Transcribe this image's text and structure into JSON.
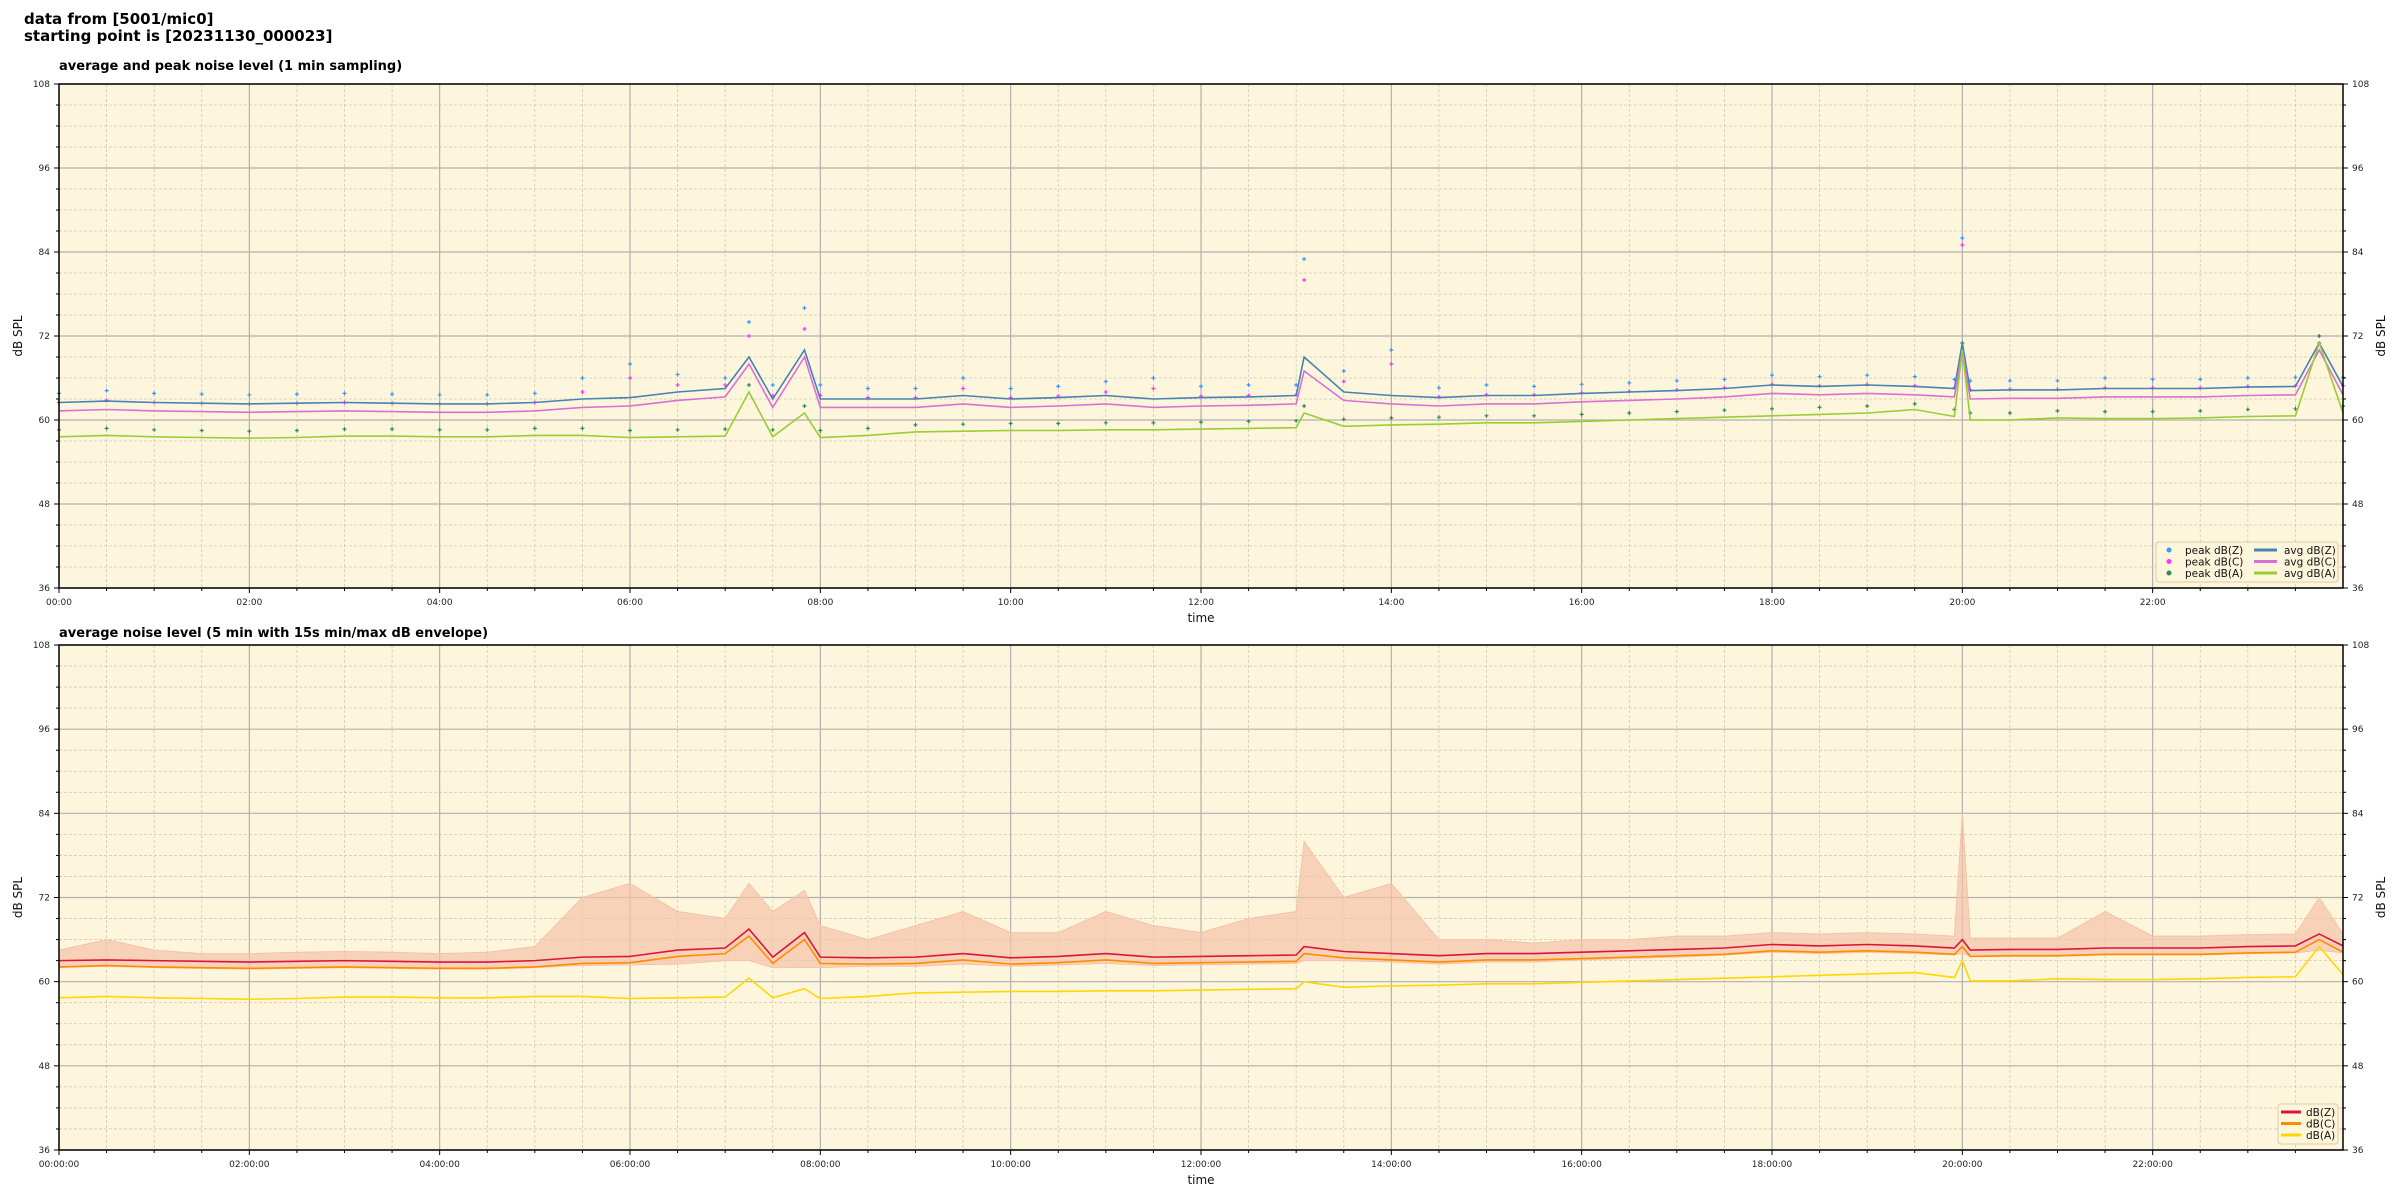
{
  "header": {
    "line1": "data from [5001/mic0]",
    "line2": "starting point is [20231130_000023]"
  },
  "colors": {
    "background": "#fef6dc",
    "grid_major": "#b0b0b0",
    "grid_minor": "#cfcabb"
  },
  "chart_data": [
    {
      "type": "line",
      "title": "average and peak noise level (1 min sampling)",
      "xlabel": "time",
      "ylabel": "dB SPL",
      "ylim": [
        36,
        108
      ],
      "xlim": [
        "00:00",
        "24:00"
      ],
      "yticks": [
        "108",
        "96",
        "84",
        "72",
        "60",
        "48",
        "36"
      ],
      "xticks": [
        "00:00",
        "02:00",
        "04:00",
        "06:00",
        "08:00",
        "10:00",
        "12:00",
        "14:00",
        "16:00",
        "18:00",
        "20:00",
        "22:00"
      ],
      "grid": true,
      "legend": "bottom-right",
      "x": [
        "00:00",
        "00:30",
        "01:00",
        "01:30",
        "02:00",
        "02:30",
        "03:00",
        "03:30",
        "04:00",
        "04:30",
        "05:00",
        "05:30",
        "06:00",
        "06:30",
        "07:00",
        "07:15",
        "07:30",
        "07:50",
        "08:00",
        "08:30",
        "09:00",
        "09:30",
        "10:00",
        "10:30",
        "11:00",
        "11:30",
        "12:00",
        "12:30",
        "13:00",
        "13:05",
        "13:30",
        "14:00",
        "14:30",
        "15:00",
        "15:30",
        "16:00",
        "16:30",
        "17:00",
        "17:30",
        "18:00",
        "18:30",
        "19:00",
        "19:30",
        "19:55",
        "20:00",
        "20:05",
        "20:30",
        "21:00",
        "21:30",
        "22:00",
        "22:30",
        "23:00",
        "23:30",
        "23:45",
        "24:00"
      ],
      "series": [
        {
          "name": "peak dB(Z)",
          "kind": "points",
          "color": "#3399ff",
          "values": [
            63.8,
            64.2,
            63.8,
            63.7,
            63.6,
            63.7,
            63.8,
            63.7,
            63.6,
            63.6,
            63.8,
            66.0,
            68.0,
            66.5,
            66.0,
            74.0,
            65.0,
            76.0,
            65.0,
            64.5,
            64.5,
            66.0,
            64.5,
            64.8,
            65.5,
            66.0,
            64.8,
            65.0,
            65.0,
            83.0,
            67.0,
            70.0,
            64.6,
            65.0,
            64.8,
            65.1,
            65.3,
            65.6,
            65.8,
            66.4,
            66.2,
            66.4,
            66.2,
            65.8,
            86.0,
            65.6,
            65.6,
            65.6,
            66.0,
            65.8,
            65.8,
            66.0,
            66.1,
            72.0,
            66.1
          ]
        },
        {
          "name": "peak dB(C)",
          "kind": "points",
          "color": "#ff33ff",
          "values": [
            62.5,
            62.8,
            62.5,
            62.4,
            62.3,
            62.4,
            62.5,
            62.4,
            62.3,
            62.3,
            62.5,
            64.0,
            66.0,
            65.0,
            65.0,
            72.0,
            63.5,
            73.0,
            63.5,
            63.2,
            63.2,
            64.5,
            63.2,
            63.4,
            64.0,
            64.5,
            63.4,
            63.5,
            63.6,
            80.0,
            65.5,
            68.0,
            63.3,
            63.6,
            63.6,
            63.9,
            64.1,
            64.3,
            64.6,
            65.1,
            64.9,
            65.1,
            64.9,
            64.6,
            85.0,
            64.3,
            64.4,
            64.4,
            64.6,
            64.6,
            64.6,
            64.8,
            64.9,
            71.0,
            64.9
          ]
        },
        {
          "name": "peak dB(A)",
          "kind": "points",
          "color": "#2e8b57",
          "values": [
            58.6,
            58.8,
            58.6,
            58.5,
            58.4,
            58.5,
            58.7,
            58.7,
            58.6,
            58.6,
            58.8,
            58.8,
            58.5,
            58.6,
            58.7,
            65.0,
            58.6,
            62.0,
            58.5,
            58.8,
            59.3,
            59.4,
            59.5,
            59.5,
            59.6,
            59.6,
            59.7,
            59.8,
            59.9,
            62.0,
            60.1,
            60.3,
            60.4,
            60.6,
            60.6,
            60.8,
            61.0,
            61.2,
            61.4,
            61.6,
            61.8,
            62.0,
            62.3,
            61.5,
            71.0,
            61.0,
            61.0,
            61.3,
            61.2,
            61.2,
            61.3,
            61.5,
            61.6,
            72.0,
            62.0
          ]
        },
        {
          "name": "avg dB(Z)",
          "kind": "line",
          "color": "#4682b4",
          "values": [
            62.5,
            62.7,
            62.5,
            62.4,
            62.3,
            62.4,
            62.5,
            62.4,
            62.3,
            62.3,
            62.5,
            63.0,
            63.2,
            64.0,
            64.5,
            69.0,
            63.0,
            70.0,
            63.0,
            63.0,
            63.0,
            63.5,
            63.0,
            63.2,
            63.5,
            63.0,
            63.2,
            63.3,
            63.5,
            69.0,
            64.0,
            63.5,
            63.2,
            63.5,
            63.5,
            63.8,
            64.0,
            64.2,
            64.5,
            65.0,
            64.8,
            65.0,
            64.8,
            64.5,
            71.0,
            64.2,
            64.3,
            64.3,
            64.5,
            64.5,
            64.5,
            64.7,
            64.8,
            71.0,
            64.8
          ]
        },
        {
          "name": "avg dB(C)",
          "kind": "line",
          "color": "#da70d6",
          "values": [
            61.3,
            61.5,
            61.3,
            61.2,
            61.1,
            61.2,
            61.3,
            61.2,
            61.1,
            61.1,
            61.3,
            61.8,
            62.0,
            62.8,
            63.3,
            68.0,
            61.8,
            69.0,
            61.8,
            61.8,
            61.8,
            62.3,
            61.8,
            62.0,
            62.3,
            61.8,
            62.0,
            62.1,
            62.3,
            67.0,
            62.8,
            62.3,
            62.0,
            62.3,
            62.3,
            62.6,
            62.8,
            63.0,
            63.3,
            63.8,
            63.6,
            63.8,
            63.6,
            63.3,
            70.0,
            63.0,
            63.1,
            63.1,
            63.3,
            63.3,
            63.3,
            63.5,
            63.6,
            70.0,
            63.6
          ]
        },
        {
          "name": "avg dB(A)",
          "kind": "line",
          "color": "#9acd32",
          "values": [
            57.6,
            57.8,
            57.6,
            57.5,
            57.4,
            57.5,
            57.7,
            57.7,
            57.6,
            57.6,
            57.8,
            57.8,
            57.5,
            57.6,
            57.7,
            64.0,
            57.6,
            61.0,
            57.5,
            57.8,
            58.3,
            58.4,
            58.5,
            58.5,
            58.6,
            58.6,
            58.7,
            58.8,
            58.9,
            61.0,
            59.1,
            59.3,
            59.4,
            59.6,
            59.6,
            59.8,
            60.0,
            60.2,
            60.4,
            60.6,
            60.8,
            61.0,
            61.5,
            60.5,
            70.0,
            60.0,
            60.0,
            60.3,
            60.2,
            60.2,
            60.3,
            60.5,
            60.6,
            71.0,
            61.0
          ]
        }
      ]
    },
    {
      "type": "line",
      "title": "average noise level (5 min with 15s min/max dB envelope)",
      "xlabel": "time",
      "ylabel": "dB SPL",
      "ylim": [
        36,
        108
      ],
      "xlim": [
        "00:00:00",
        "24:00:00"
      ],
      "yticks": [
        "108",
        "96",
        "84",
        "72",
        "60",
        "48",
        "36"
      ],
      "xticks": [
        "00:00:00",
        "02:00:00",
        "04:00:00",
        "06:00:00",
        "08:00:00",
        "10:00:00",
        "12:00:00",
        "14:00:00",
        "16:00:00",
        "18:00:00",
        "20:00:00",
        "22:00:00"
      ],
      "grid": true,
      "legend": "bottom-right",
      "x": [
        "00:00",
        "00:30",
        "01:00",
        "01:30",
        "02:00",
        "02:30",
        "03:00",
        "03:30",
        "04:00",
        "04:30",
        "05:00",
        "05:30",
        "06:00",
        "06:30",
        "07:00",
        "07:15",
        "07:30",
        "07:50",
        "08:00",
        "08:30",
        "09:00",
        "09:30",
        "10:00",
        "10:30",
        "11:00",
        "11:30",
        "12:00",
        "12:30",
        "13:00",
        "13:05",
        "13:30",
        "14:00",
        "14:30",
        "15:00",
        "15:30",
        "16:00",
        "16:30",
        "17:00",
        "17:30",
        "18:00",
        "18:30",
        "19:00",
        "19:30",
        "19:55",
        "20:00",
        "20:05",
        "20:30",
        "21:00",
        "21:30",
        "22:00",
        "22:30",
        "23:00",
        "23:30",
        "23:45",
        "24:00"
      ],
      "envelope": {
        "color": "#f5c3a8",
        "max": [
          64.5,
          66.0,
          64.5,
          64.0,
          64.0,
          64.2,
          64.3,
          64.2,
          64.0,
          64.2,
          65.0,
          72.0,
          74.0,
          70.0,
          69.0,
          74.0,
          70.0,
          73.0,
          68.0,
          66.0,
          68.0,
          70.0,
          67.0,
          67.0,
          70.0,
          68.0,
          67.0,
          69.0,
          70.0,
          80.0,
          72.0,
          74.0,
          66.0,
          66.0,
          65.5,
          66.0,
          66.0,
          66.5,
          66.5,
          67.0,
          66.8,
          67.0,
          66.8,
          66.5,
          84.0,
          66.2,
          66.2,
          66.2,
          70.0,
          66.5,
          66.5,
          66.7,
          66.8,
          72.0,
          66.8
        ],
        "min": [
          62.0,
          62.2,
          62.0,
          61.9,
          61.8,
          61.9,
          62.0,
          61.9,
          61.8,
          61.8,
          62.0,
          62.3,
          62.4,
          62.5,
          63.0,
          63.0,
          62.0,
          62.0,
          62.0,
          62.2,
          62.2,
          62.5,
          62.2,
          62.4,
          62.6,
          62.3,
          62.4,
          62.5,
          62.6,
          63.0,
          63.0,
          62.8,
          62.5,
          62.8,
          62.8,
          63.1,
          63.3,
          63.5,
          63.8,
          64.2,
          64.0,
          64.2,
          64.0,
          63.8,
          64.0,
          63.6,
          63.6,
          63.6,
          63.8,
          63.8,
          63.8,
          64.0,
          64.1,
          64.5,
          64.1
        ]
      },
      "series": [
        {
          "name": "dB(Z)",
          "color": "#dc143c",
          "values": [
            63.0,
            63.1,
            63.0,
            62.9,
            62.8,
            62.9,
            63.0,
            62.9,
            62.8,
            62.8,
            63.0,
            63.5,
            63.6,
            64.5,
            64.8,
            67.5,
            63.5,
            67.0,
            63.5,
            63.4,
            63.5,
            64.0,
            63.4,
            63.6,
            64.0,
            63.5,
            63.6,
            63.7,
            63.8,
            65.0,
            64.3,
            64.0,
            63.7,
            64.0,
            64.0,
            64.2,
            64.4,
            64.6,
            64.8,
            65.3,
            65.1,
            65.3,
            65.1,
            64.8,
            66.0,
            64.5,
            64.6,
            64.6,
            64.8,
            64.8,
            64.8,
            65.0,
            65.1,
            66.8,
            65.1
          ]
        },
        {
          "name": "dB(C)",
          "color": "#ff8c00",
          "values": [
            62.1,
            62.3,
            62.1,
            62.0,
            61.9,
            62.0,
            62.1,
            62.0,
            61.9,
            61.9,
            62.1,
            62.6,
            62.7,
            63.6,
            64.0,
            66.5,
            62.6,
            66.0,
            62.6,
            62.5,
            62.6,
            63.1,
            62.5,
            62.7,
            63.1,
            62.6,
            62.7,
            62.8,
            62.9,
            64.0,
            63.4,
            63.1,
            62.8,
            63.1,
            63.1,
            63.3,
            63.5,
            63.7,
            63.9,
            64.4,
            64.2,
            64.4,
            64.2,
            63.9,
            65.0,
            63.6,
            63.7,
            63.7,
            63.9,
            63.9,
            63.9,
            64.1,
            64.2,
            66.0,
            64.2
          ]
        },
        {
          "name": "dB(A)",
          "color": "#ffd700",
          "values": [
            57.7,
            57.9,
            57.7,
            57.6,
            57.5,
            57.6,
            57.8,
            57.8,
            57.7,
            57.7,
            57.9,
            57.9,
            57.6,
            57.7,
            57.8,
            60.5,
            57.7,
            59.0,
            57.6,
            57.9,
            58.4,
            58.5,
            58.6,
            58.6,
            58.7,
            58.7,
            58.8,
            58.9,
            59.0,
            60.0,
            59.2,
            59.4,
            59.5,
            59.7,
            59.7,
            59.9,
            60.1,
            60.3,
            60.5,
            60.7,
            60.9,
            61.1,
            61.3,
            60.6,
            63.0,
            60.1,
            60.1,
            60.4,
            60.3,
            60.3,
            60.4,
            60.6,
            60.7,
            65.0,
            61.0
          ]
        }
      ]
    }
  ]
}
